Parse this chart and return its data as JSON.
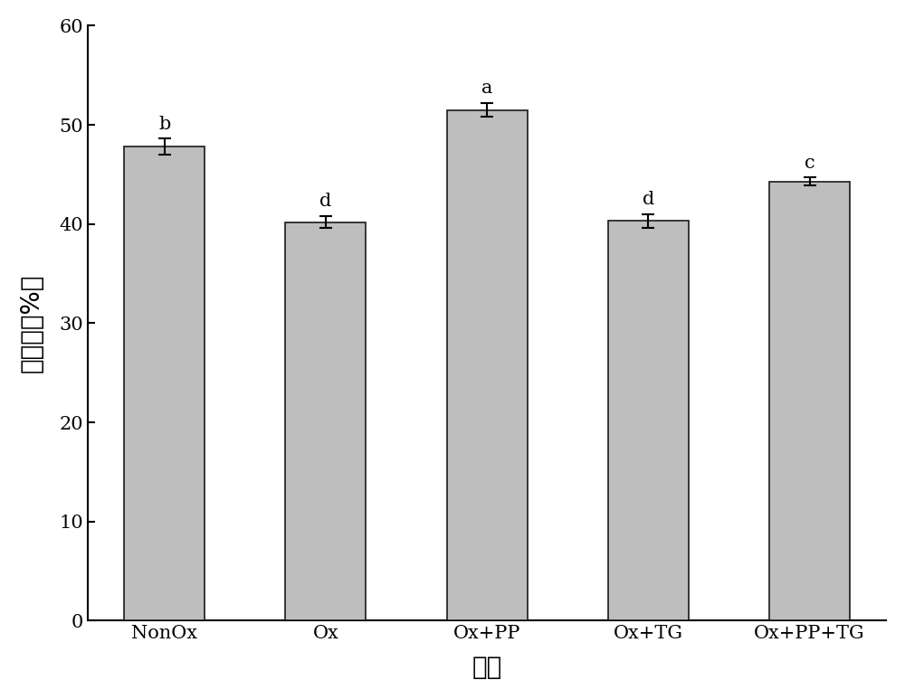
{
  "categories": [
    "NonOx",
    "Ox",
    "Ox+PP",
    "Ox+TG",
    "Ox+PP+TG"
  ],
  "values": [
    47.8,
    40.2,
    51.5,
    40.3,
    44.3
  ],
  "errors": [
    0.8,
    0.6,
    0.7,
    0.7,
    0.4
  ],
  "letters": [
    "b",
    "d",
    "a",
    "d",
    "c"
  ],
  "bar_color": "#BEBEBE",
  "bar_edgecolor": "#1a1a1a",
  "ylabel": "持水性（%）",
  "xlabel": "样品",
  "ylim": [
    0,
    60
  ],
  "yticks": [
    0,
    10,
    20,
    30,
    40,
    50,
    60
  ],
  "bar_width": 0.5,
  "letter_fontsize": 15,
  "axis_label_fontsize": 20,
  "tick_fontsize": 15,
  "background_color": "#ffffff"
}
